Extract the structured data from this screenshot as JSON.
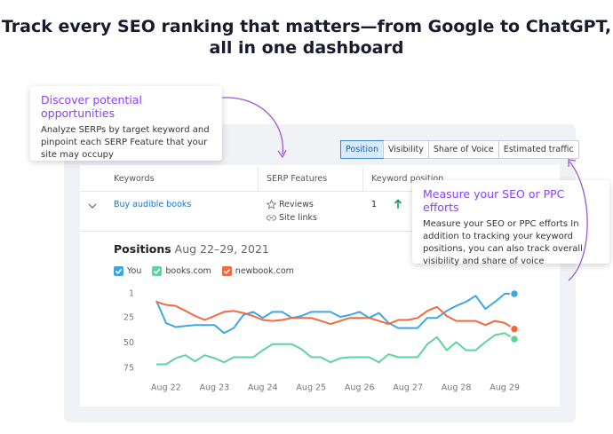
{
  "header": {
    "title": [
      "Track every SEO ranking that matters—from Google to ChatGPT,",
      "all in one dashboard"
    ]
  },
  "tabs": [
    "Position",
    "Visibility",
    "Share of Voice",
    "Estimated traffic"
  ],
  "table": {
    "headers": [
      "Keywords",
      "SERP Features",
      "Keyword position"
    ],
    "rows": [
      {
        "keyword": "Buy audible books",
        "serp_features": [
          "Reviews",
          "Site links"
        ],
        "position": "1"
      }
    ]
  },
  "callouts": [
    {
      "title": "Discover potential opportunities",
      "body": "Analyze SERPs by target keyword and pinpoint each SERP Feature that your site may occupy"
    },
    {
      "title": "Measure your SEO or PPC efforts",
      "body": "Measure your SEO or PPC efforts In addition to tracking your keyword positions, you can also track overall visibility and share of voice"
    }
  ],
  "chart_data": {
    "type": "line",
    "title": "Positions",
    "subtitle": "Aug 22–29, 2021",
    "categories": [
      null,
      "Aug 22",
      null,
      null,
      null,
      null,
      "Aug 23",
      null,
      null,
      null,
      null,
      "Aug 24",
      null,
      null,
      null,
      null,
      "Aug 25",
      null,
      null,
      null,
      null,
      "Aug 26",
      null,
      null,
      null,
      null,
      "Aug 27",
      null,
      null,
      null,
      null,
      "Aug 28",
      null,
      null,
      null,
      null,
      "Aug 29",
      null
    ],
    "series": [
      {
        "name": "You",
        "color": "#3ea7e0",
        "values": [
          8,
          30,
          34,
          33,
          32,
          32,
          32,
          40,
          35,
          22,
          19,
          25,
          19,
          19,
          25,
          23,
          19,
          19,
          19,
          24,
          22,
          19,
          25,
          20,
          30,
          35,
          35,
          35,
          25,
          25,
          18,
          13,
          9,
          3,
          16,
          9,
          1,
          1
        ]
      },
      {
        "name": "books.com",
        "color": "#5fd39a",
        "values": [
          71,
          71,
          65,
          62,
          68,
          62,
          65,
          69,
          64,
          64,
          64,
          57,
          51,
          51,
          51,
          56,
          64,
          64,
          69,
          65,
          64,
          64,
          64,
          69,
          61,
          64,
          64,
          64,
          51,
          44,
          57,
          49,
          57,
          57,
          49,
          42,
          40,
          46
        ]
      },
      {
        "name": "newbook.com",
        "color": "#f26a3d",
        "values": [
          9,
          12,
          13,
          18,
          23,
          27,
          23,
          19,
          18,
          20,
          23,
          27,
          28,
          27,
          25,
          25,
          25,
          28,
          31,
          28,
          25,
          25,
          25,
          28,
          31,
          27,
          27,
          25,
          18,
          14,
          23,
          28,
          28,
          28,
          32,
          28,
          30,
          36
        ]
      }
    ],
    "ylim": [
      1,
      75
    ],
    "y_inverted": true,
    "yticks": [
      1,
      25,
      50,
      75
    ],
    "grid": false
  }
}
